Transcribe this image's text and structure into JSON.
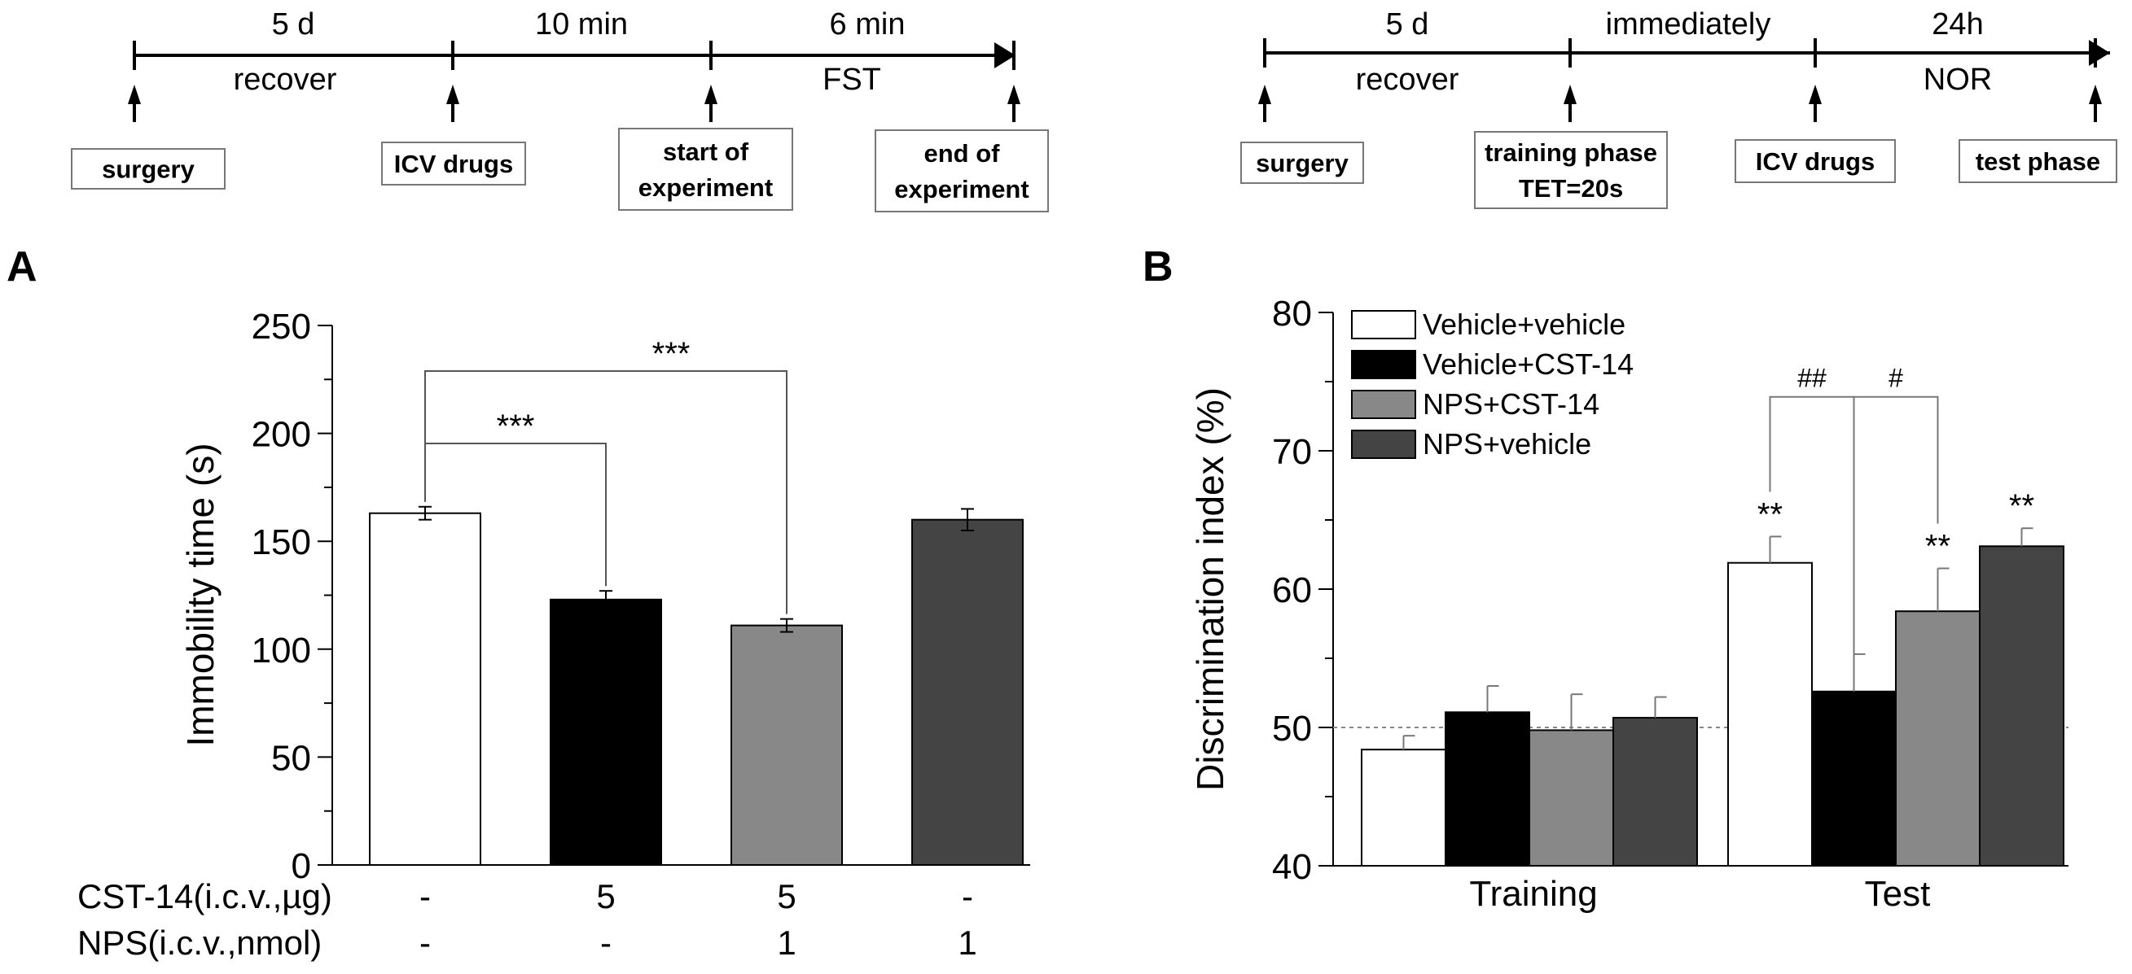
{
  "timeline_fst": {
    "segments": [
      "5 d",
      "10 min",
      "6 min"
    ],
    "sublabels": [
      "recover",
      "FST"
    ],
    "events": [
      [
        "surgery"
      ],
      [
        "ICV drugs"
      ],
      [
        "start of",
        "experiment"
      ],
      [
        "end of",
        "experiment"
      ]
    ]
  },
  "timeline_nor": {
    "segments": [
      "5 d",
      "immediately",
      "24h"
    ],
    "sublabels": [
      "recover",
      "NOR"
    ],
    "events": [
      [
        "surgery"
      ],
      [
        "training phase",
        "TET=20s"
      ],
      [
        "ICV drugs"
      ],
      [
        "test phase"
      ]
    ]
  },
  "panels": {
    "a": "A",
    "b": "B"
  },
  "chart_data": [
    {
      "type": "bar",
      "panel": "A",
      "ylabel": "Immobility time (s)",
      "ylim": [
        0,
        250
      ],
      "yticks": [
        "0",
        "50",
        "100",
        "150",
        "200",
        "250"
      ],
      "values": [
        163,
        123,
        111,
        160
      ],
      "errors": [
        3,
        4,
        3,
        5
      ],
      "fills": [
        "#ffffff",
        "#000000",
        "#888888",
        "#444444"
      ],
      "treatment_rows": [
        {
          "label": "CST-14(i.c.v.,µg)",
          "values": [
            "-",
            "5",
            "5",
            "-"
          ]
        },
        {
          "label": "NPS(i.c.v.,nmol)",
          "values": [
            "-",
            "-",
            "1",
            "1"
          ]
        }
      ],
      "significance": [
        {
          "label": "***",
          "from": 0,
          "to": 1
        },
        {
          "label": "***",
          "from": 0,
          "to": 2
        }
      ]
    },
    {
      "type": "bar",
      "panel": "B",
      "ylabel": "Discrimination index (%)",
      "ylim": [
        40,
        80
      ],
      "yticks": [
        "40",
        "50",
        "60",
        "70",
        "80"
      ],
      "reference_line": 50,
      "categories": [
        "Training",
        "Test"
      ],
      "series": [
        {
          "name": "Vehicle+vehicle",
          "color": "#ffffff",
          "values": [
            48.4,
            61.9
          ],
          "errors": [
            1.0,
            1.9
          ]
        },
        {
          "name": "Vehicle+CST-14",
          "color": "#000000",
          "values": [
            51.1,
            52.6
          ],
          "errors": [
            1.9,
            2.7
          ]
        },
        {
          "name": "NPS+CST-14",
          "color": "#888888",
          "values": [
            49.8,
            58.4
          ],
          "errors": [
            2.6,
            3.1
          ]
        },
        {
          "name": "NPS+vehicle",
          "color": "#444444",
          "values": [
            50.7,
            63.1
          ],
          "errors": [
            1.5,
            1.3
          ]
        }
      ],
      "bar_marks": [
        {
          "label": "**",
          "category": 1,
          "series": 0
        },
        {
          "label": "**",
          "category": 1,
          "series": 2
        },
        {
          "label": "**",
          "category": 1,
          "series": 3
        }
      ],
      "brackets": [
        {
          "label": "##",
          "category": 1,
          "from": 0,
          "to": 1
        },
        {
          "label": "#",
          "category": 1,
          "from": 1,
          "to": 2
        }
      ]
    }
  ]
}
